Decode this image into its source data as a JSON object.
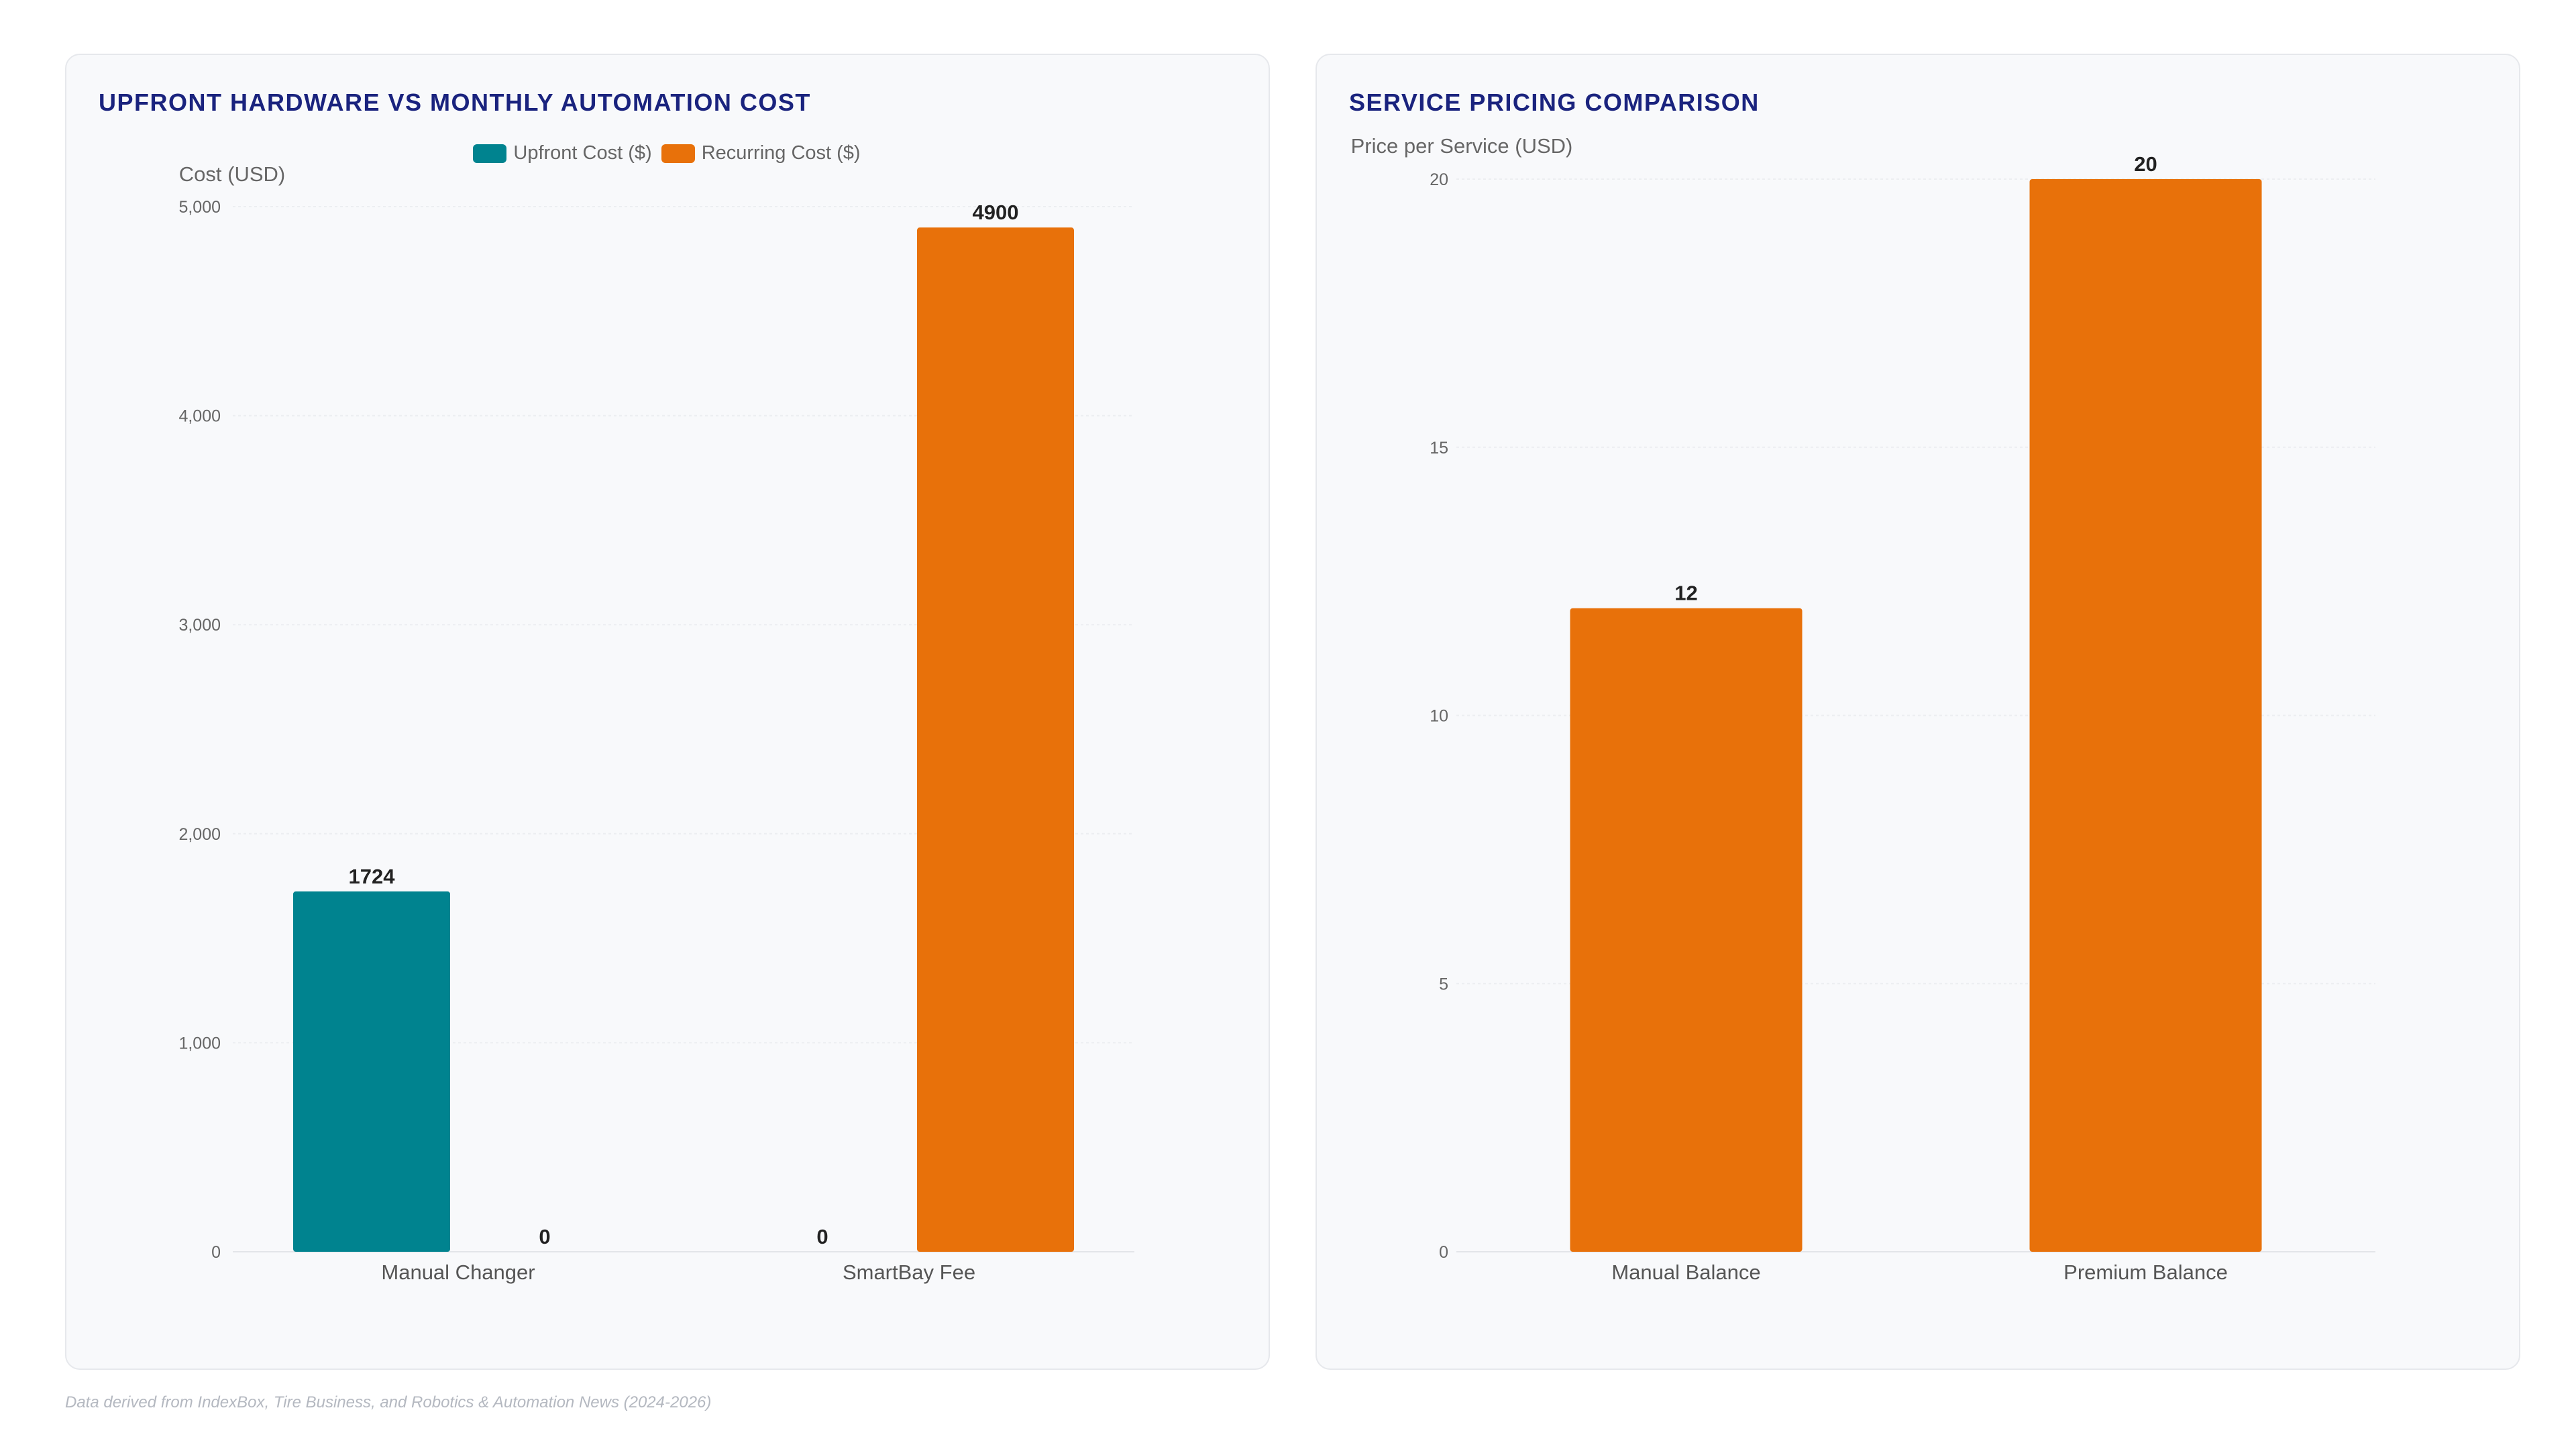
{
  "charts": {
    "left": {
      "title": "UPFRONT HARDWARE VS MONTHLY AUTOMATION COST",
      "legend": [
        {
          "label": "Upfront Cost ($)",
          "color": "#00838f"
        },
        {
          "label": "Recurring Cost ($)",
          "color": "#e8710a"
        }
      ]
    },
    "right": {
      "title": "SERVICE PRICING COMPARISON"
    }
  },
  "chart_data": [
    {
      "type": "bar",
      "title": "UPFRONT HARDWARE VS MONTHLY AUTOMATION COST",
      "ylabel": "Cost (USD)",
      "xlabel": "",
      "categories": [
        "Manual Changer",
        "SmartBay Fee"
      ],
      "series": [
        {
          "name": "Upfront Cost ($)",
          "color": "#00838f",
          "values": [
            1724,
            0
          ]
        },
        {
          "name": "Recurring Cost ($)",
          "color": "#e8710a",
          "values": [
            0,
            4900
          ]
        }
      ],
      "ylim": [
        0,
        5000
      ],
      "yticks": [
        0,
        1000,
        2000,
        3000,
        4000,
        5000
      ],
      "ytick_labels": [
        "0",
        "1,000",
        "2,000",
        "3,000",
        "4,000",
        "5,000"
      ],
      "grid": true,
      "legend_position": "top"
    },
    {
      "type": "bar",
      "title": "SERVICE PRICING COMPARISON",
      "ylabel": "Price per Service (USD)",
      "xlabel": "",
      "categories": [
        "Manual Balance",
        "Premium Balance"
      ],
      "series": [
        {
          "color": "#e8710a",
          "values": [
            12,
            20
          ]
        }
      ],
      "ylim": [
        0,
        20
      ],
      "yticks": [
        0,
        5,
        10,
        15,
        20
      ],
      "ytick_labels": [
        "0",
        "5",
        "10",
        "15",
        "20"
      ],
      "grid": true
    }
  ],
  "footnote": "Data derived from IndexBox, Tire Business, and Robotics & Automation News (2024-2026)"
}
